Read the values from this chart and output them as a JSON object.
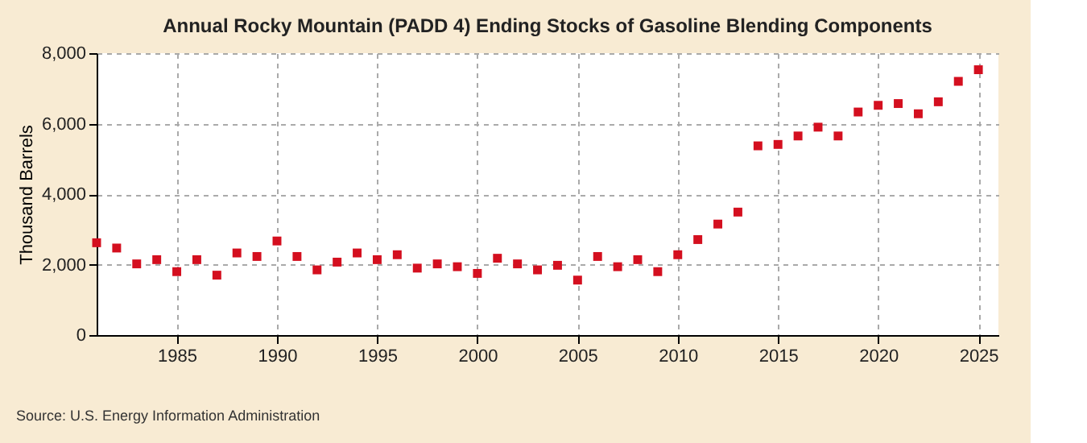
{
  "chart_data": {
    "type": "scatter",
    "title": "Annual Rocky Mountain (PADD 4) Ending Stocks of Gasoline Blending Components",
    "ylabel": "Thousand Barrels",
    "x": [
      1981,
      1982,
      1983,
      1984,
      1985,
      1986,
      1987,
      1988,
      1989,
      1990,
      1991,
      1992,
      1993,
      1994,
      1995,
      1996,
      1997,
      1998,
      1999,
      2000,
      2001,
      2002,
      2003,
      2004,
      2005,
      2006,
      2007,
      2008,
      2009,
      2010,
      2011,
      2012,
      2013,
      2014,
      2015,
      2016,
      2017,
      2018,
      2019,
      2020,
      2021,
      2022,
      2023,
      2024,
      2025
    ],
    "series": [
      {
        "color": "#d40f1f",
        "values": [
          2620,
          2470,
          2020,
          2140,
          1800,
          2140,
          1700,
          2330,
          2230,
          2670,
          2230,
          1850,
          2070,
          2330,
          2140,
          2280,
          1900,
          2020,
          1940,
          1750,
          2180,
          2020,
          1850,
          1980,
          1560,
          2230,
          1940,
          2140,
          1800,
          2280,
          2710,
          3150,
          3490,
          5370,
          5410,
          5650,
          5900,
          5650,
          6330,
          6520,
          6570,
          6280,
          6620,
          7200,
          7530
        ]
      }
    ],
    "xlim": [
      1981,
      2026
    ],
    "xticks": [
      1985,
      1990,
      1995,
      2000,
      2005,
      2010,
      2015,
      2020,
      2025
    ],
    "ylim": [
      0,
      8000
    ],
    "yticks": [
      0,
      {
        "value": 2000,
        "label": "2,000"
      },
      {
        "value": 4000,
        "label": "4,000"
      },
      {
        "value": 6000,
        "label": "6,000"
      },
      {
        "value": 8000,
        "label": "8,000"
      }
    ],
    "grid": true,
    "marker": "square",
    "legend": false,
    "annotations": [
      "Source: U.S. Energy Information Administration"
    ]
  }
}
